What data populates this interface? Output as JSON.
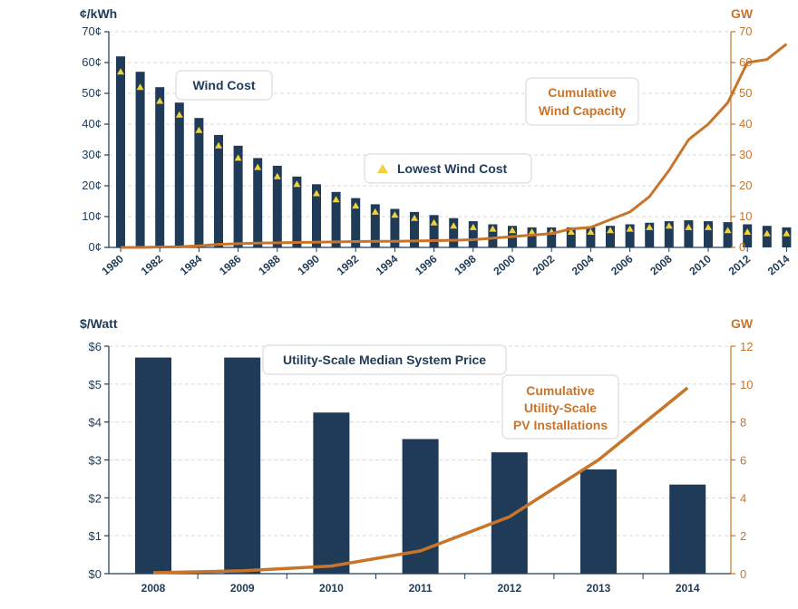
{
  "chart_data": [
    {
      "type": "bar",
      "left_unit": "¢/kWh",
      "right_unit": "GW",
      "left_ticks": [
        "0¢",
        "10¢",
        "20¢",
        "30¢",
        "40¢",
        "50¢",
        "60¢",
        "70¢"
      ],
      "right_ticks": [
        "0",
        "10",
        "20",
        "30",
        "40",
        "50",
        "60",
        "70"
      ],
      "ylim_left": [
        0,
        70
      ],
      "ylim_right": [
        0,
        70
      ],
      "x_tick_labels": [
        "1980",
        "1982",
        "1984",
        "1986",
        "1988",
        "1990",
        "1992",
        "1994",
        "1996",
        "1998",
        "2000",
        "2002",
        "2004",
        "2006",
        "2008",
        "2010",
        "2012",
        "2014"
      ],
      "categories": [
        1980,
        1981,
        1982,
        1983,
        1984,
        1985,
        1986,
        1987,
        1988,
        1989,
        1990,
        1991,
        1992,
        1993,
        1994,
        1995,
        1996,
        1997,
        1998,
        1999,
        2000,
        2001,
        2002,
        2003,
        2004,
        2005,
        2006,
        2007,
        2008,
        2009,
        2010,
        2011,
        2012,
        2013,
        2014
      ],
      "series": [
        {
          "name": "Wind Cost",
          "kind": "bar",
          "axis": "left",
          "values": [
            62,
            57,
            52,
            47,
            42,
            36.5,
            33,
            29,
            26.5,
            23,
            20.5,
            18,
            16,
            14,
            12.5,
            11.5,
            10.5,
            9.5,
            8.5,
            7.5,
            7,
            6.5,
            6.5,
            6.5,
            6.5,
            7,
            7.5,
            8,
            8.5,
            8.8,
            8.5,
            8.2,
            7.5,
            7,
            6.5
          ]
        },
        {
          "name": "Lowest Wind Cost",
          "kind": "marker",
          "axis": "left",
          "values": [
            57,
            52,
            47.5,
            43,
            38,
            33,
            29,
            26,
            23,
            20.5,
            17.5,
            15.5,
            13.5,
            11.5,
            10.5,
            9.5,
            8,
            7,
            6.5,
            6,
            5.5,
            5,
            5,
            5,
            5,
            5.5,
            6,
            6.5,
            7,
            6.5,
            6.5,
            5.5,
            5,
            4.5,
            4.5
          ]
        },
        {
          "name": "Cumulative Wind Capacity",
          "kind": "line",
          "axis": "right",
          "values": [
            0,
            0,
            0.1,
            0.2,
            0.5,
            1,
            1.2,
            1.4,
            1.5,
            1.6,
            1.7,
            1.8,
            1.9,
            2,
            2,
            2.1,
            2.2,
            2.3,
            2.5,
            3,
            3.5,
            4,
            4.5,
            6,
            6.5,
            9,
            11.5,
            16.5,
            25,
            35,
            40,
            47,
            60,
            61,
            66
          ]
        }
      ],
      "callouts": [
        "Wind Cost",
        "Lowest Wind Cost",
        "Cumulative Wind Capacity"
      ]
    },
    {
      "type": "bar",
      "left_unit": "$/Watt",
      "right_unit": "GW",
      "left_ticks": [
        "$0",
        "$1",
        "$2",
        "$3",
        "$4",
        "$5",
        "$6"
      ],
      "right_ticks": [
        "0",
        "2",
        "4",
        "6",
        "8",
        "10",
        "12"
      ],
      "ylim_left": [
        0,
        6
      ],
      "ylim_right": [
        0,
        12
      ],
      "categories": [
        "2008",
        "2009",
        "2010",
        "2011",
        "2012",
        "2013",
        "2014"
      ],
      "series": [
        {
          "name": "Utility-Scale Median System Price",
          "kind": "bar",
          "axis": "left",
          "values": [
            5.7,
            5.7,
            4.25,
            3.55,
            3.2,
            2.75,
            2.35
          ]
        },
        {
          "name": "Cumulative Utility-Scale PV Installations",
          "kind": "line",
          "axis": "right",
          "values": [
            0.05,
            0.15,
            0.4,
            1.2,
            3,
            6,
            9.8
          ]
        }
      ],
      "callouts": [
        "Utility-Scale Median System Price",
        "Cumulative Utility-Scale PV Installations"
      ]
    }
  ],
  "labels": {
    "wind_cost": "Wind Cost",
    "lowest_wind_cost": "Lowest Wind Cost",
    "wind_capacity_1": "Cumulative",
    "wind_capacity_2": "Wind Capacity",
    "solar_price": "Utility-Scale Median System Price",
    "pv_1": "Cumulative",
    "pv_2": "Utility-Scale",
    "pv_3": "PV Installations"
  },
  "colors": {
    "bar": "#1f3b57",
    "line": "#c8742a",
    "marker": "#f2d23c",
    "grid": "#d9d9d9"
  }
}
